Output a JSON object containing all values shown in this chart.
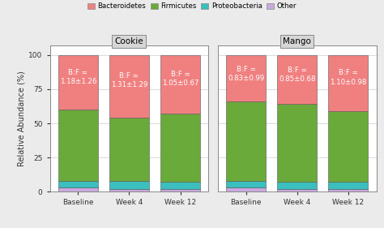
{
  "groups": [
    "Cookie",
    "Mango"
  ],
  "timepoints": [
    "Baseline",
    "Week 4",
    "Week 12"
  ],
  "colors": {
    "Bacteroidetes": "#F08080",
    "Firmicutes": "#6aaa3a",
    "Proteobacteria": "#3bbfbf",
    "Other": "#c9aadf"
  },
  "bar_edge_color": "#555555",
  "cookie_data": {
    "Bacteroidetes": [
      40,
      46,
      43
    ],
    "Firmicutes": [
      52,
      46,
      50
    ],
    "Proteobacteria": [
      5,
      6,
      5
    ],
    "Other": [
      3,
      2,
      2
    ]
  },
  "mango_data": {
    "Bacteroidetes": [
      34,
      36,
      41
    ],
    "Firmicutes": [
      58,
      57,
      52
    ],
    "Proteobacteria": [
      5,
      5,
      5
    ],
    "Other": [
      3,
      2,
      2
    ]
  },
  "bf_labels": {
    "cookie": [
      "B:F =\n1.18±1.26",
      "B:F =\n1.31±1.29",
      "B:F =\n1.05±0.67"
    ],
    "mango": [
      "B:F =\n0.83±0.99",
      "B:F =\n0.85±0.68",
      "B:F =\n1.10±0.98"
    ]
  },
  "ylabel": "Relative Abundance (%)",
  "ylim": [
    0,
    107
  ],
  "yticks": [
    0,
    25,
    50,
    75,
    100
  ],
  "bg_color": "#ebebeb",
  "panel_bg": "#ffffff",
  "panel_header_bg": "#d6d6d6",
  "legend_labels": [
    "Bacteroidetes",
    "Firmicutes",
    "Proteobacteria",
    "Other"
  ],
  "bar_width": 0.78,
  "grid_color": "#cccccc"
}
